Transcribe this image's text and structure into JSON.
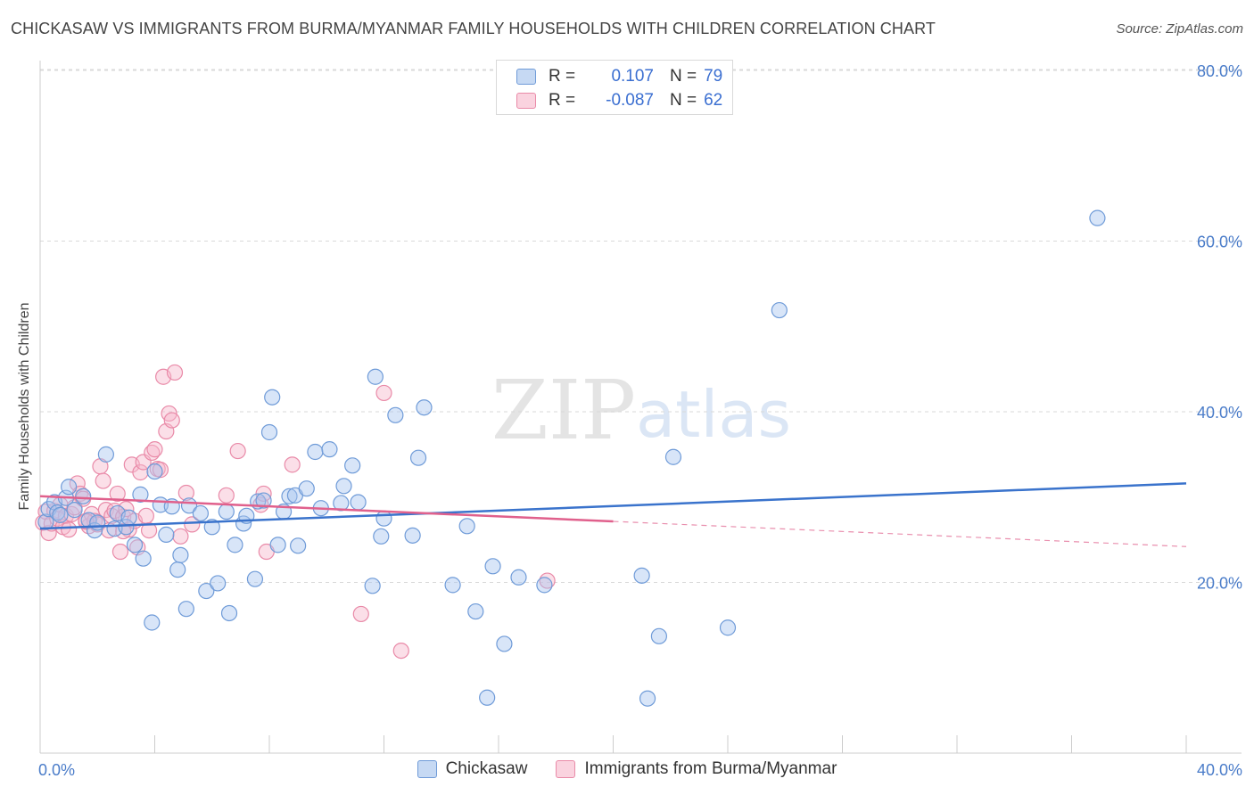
{
  "title": "CHICKASAW VS IMMIGRANTS FROM BURMA/MYANMAR FAMILY HOUSEHOLDS WITH CHILDREN CORRELATION CHART",
  "source": "Source: ZipAtlas.com",
  "watermark": {
    "zip": "ZIP",
    "atlas": "atlas"
  },
  "legend": {
    "r_label": "R =",
    "n_label": "N =",
    "series": [
      {
        "r": "0.107",
        "n": "79"
      },
      {
        "r": "-0.087",
        "n": "62"
      }
    ]
  },
  "bottom_legend": [
    "Chickasaw",
    "Immigrants from Burma/Myanmar"
  ],
  "colors": {
    "blue_fill": "#a9c6ef",
    "blue_stroke": "#6f9bd8",
    "blue_line": "#3a73cc",
    "pink_fill": "#f6b8cb",
    "pink_stroke": "#e98aa8",
    "pink_line": "#e0608c",
    "grid": "#d9d9d9",
    "axis_text": "#4a7cc9"
  },
  "chart_data": {
    "type": "scatter",
    "title": "CHICKASAW VS IMMIGRANTS FROM BURMA/MYANMAR FAMILY HOUSEHOLDS WITH CHILDREN CORRELATION CHART",
    "xlabel": "",
    "ylabel": "Family Households with Children",
    "xlim": [
      0,
      40
    ],
    "ylim": [
      0,
      82
    ],
    "x_tick_labels": [
      "0.0%",
      "40.0%"
    ],
    "y_ticks": [
      20,
      40,
      60,
      80
    ],
    "y_tick_labels": [
      "20.0%",
      "40.0%",
      "60.0%",
      "80.0%"
    ],
    "grid": true,
    "legend_position": "top-center",
    "series": [
      {
        "name": "Chickasaw",
        "r": 0.107,
        "n": 79,
        "trend": {
          "x0": 0,
          "y0": 26.3,
          "x1": 40,
          "y1": 31.6,
          "dashed_from": null
        },
        "points": [
          [
            0.2,
            27.1
          ],
          [
            0.3,
            28.6
          ],
          [
            0.5,
            29.4
          ],
          [
            0.6,
            28.2
          ],
          [
            0.7,
            27.9
          ],
          [
            0.9,
            29.9
          ],
          [
            1.0,
            31.2
          ],
          [
            1.2,
            28.5
          ],
          [
            1.5,
            30.1
          ],
          [
            1.7,
            27.3
          ],
          [
            1.9,
            26.1
          ],
          [
            2.0,
            27.0
          ],
          [
            2.3,
            35.0
          ],
          [
            2.6,
            26.3
          ],
          [
            2.7,
            28.1
          ],
          [
            3.0,
            26.5
          ],
          [
            3.1,
            27.6
          ],
          [
            3.3,
            24.4
          ],
          [
            3.5,
            30.3
          ],
          [
            3.6,
            22.8
          ],
          [
            3.9,
            15.3
          ],
          [
            4.0,
            33.0
          ],
          [
            4.2,
            29.1
          ],
          [
            4.4,
            25.6
          ],
          [
            4.6,
            28.9
          ],
          [
            4.8,
            21.5
          ],
          [
            4.9,
            23.2
          ],
          [
            5.1,
            16.9
          ],
          [
            5.2,
            29.0
          ],
          [
            5.6,
            28.1
          ],
          [
            5.8,
            19.0
          ],
          [
            6.0,
            26.5
          ],
          [
            6.2,
            19.9
          ],
          [
            6.5,
            28.3
          ],
          [
            6.6,
            16.4
          ],
          [
            6.8,
            24.4
          ],
          [
            7.1,
            26.9
          ],
          [
            7.2,
            27.8
          ],
          [
            7.5,
            20.4
          ],
          [
            7.6,
            29.5
          ],
          [
            7.8,
            29.6
          ],
          [
            8.0,
            37.6
          ],
          [
            8.1,
            41.7
          ],
          [
            8.3,
            24.4
          ],
          [
            8.5,
            28.3
          ],
          [
            8.7,
            30.1
          ],
          [
            8.9,
            30.2
          ],
          [
            9.0,
            24.3
          ],
          [
            9.3,
            31.0
          ],
          [
            9.6,
            35.3
          ],
          [
            9.8,
            28.7
          ],
          [
            10.1,
            35.6
          ],
          [
            10.5,
            29.3
          ],
          [
            10.6,
            31.3
          ],
          [
            10.9,
            33.7
          ],
          [
            11.1,
            29.4
          ],
          [
            11.6,
            19.6
          ],
          [
            11.7,
            44.1
          ],
          [
            11.9,
            25.4
          ],
          [
            12.0,
            27.5
          ],
          [
            12.4,
            39.6
          ],
          [
            13.0,
            25.5
          ],
          [
            13.2,
            34.6
          ],
          [
            13.4,
            40.5
          ],
          [
            14.4,
            19.7
          ],
          [
            14.9,
            26.6
          ],
          [
            15.2,
            16.6
          ],
          [
            15.8,
            21.9
          ],
          [
            16.2,
            12.8
          ],
          [
            16.7,
            20.6
          ],
          [
            17.6,
            19.7
          ],
          [
            21.0,
            20.8
          ],
          [
            21.2,
            6.4
          ],
          [
            21.6,
            13.7
          ],
          [
            22.1,
            34.7
          ],
          [
            24.0,
            14.7
          ],
          [
            25.8,
            51.9
          ],
          [
            36.9,
            62.7
          ],
          [
            15.6,
            6.5
          ]
        ]
      },
      {
        "name": "Immigrants from Burma/Myanmar",
        "r": -0.087,
        "n": 62,
        "trend": {
          "x0": 0,
          "y0": 30.1,
          "x1": 40,
          "y1": 24.2,
          "dashed_from": 20
        },
        "points": [
          [
            0.1,
            27.0
          ],
          [
            0.2,
            28.3
          ],
          [
            0.3,
            25.8
          ],
          [
            0.4,
            26.9
          ],
          [
            0.5,
            28.4
          ],
          [
            0.6,
            27.5
          ],
          [
            0.7,
            29.1
          ],
          [
            0.8,
            26.5
          ],
          [
            0.9,
            27.8
          ],
          [
            1.0,
            26.2
          ],
          [
            1.1,
            28.0
          ],
          [
            1.2,
            28.8
          ],
          [
            1.3,
            31.6
          ],
          [
            1.4,
            30.4
          ],
          [
            1.5,
            29.8
          ],
          [
            1.6,
            27.1
          ],
          [
            1.7,
            26.6
          ],
          [
            1.8,
            28.0
          ],
          [
            1.9,
            27.2
          ],
          [
            2.0,
            26.8
          ],
          [
            2.1,
            33.6
          ],
          [
            2.2,
            31.9
          ],
          [
            2.3,
            28.5
          ],
          [
            2.4,
            26.1
          ],
          [
            2.5,
            27.8
          ],
          [
            2.6,
            28.4
          ],
          [
            2.7,
            30.4
          ],
          [
            2.8,
            23.6
          ],
          [
            2.9,
            27.7
          ],
          [
            3.0,
            28.6
          ],
          [
            3.1,
            26.2
          ],
          [
            3.2,
            33.8
          ],
          [
            3.3,
            27.2
          ],
          [
            3.4,
            24.1
          ],
          [
            3.5,
            32.9
          ],
          [
            3.6,
            34.1
          ],
          [
            3.7,
            27.8
          ],
          [
            3.8,
            26.1
          ],
          [
            3.9,
            35.2
          ],
          [
            4.0,
            35.6
          ],
          [
            4.1,
            33.3
          ],
          [
            4.2,
            33.2
          ],
          [
            4.3,
            44.1
          ],
          [
            4.4,
            37.7
          ],
          [
            4.5,
            39.8
          ],
          [
            4.6,
            39.0
          ],
          [
            4.7,
            44.6
          ],
          [
            4.9,
            25.4
          ],
          [
            5.1,
            30.5
          ],
          [
            5.3,
            26.8
          ],
          [
            6.5,
            30.2
          ],
          [
            6.9,
            35.4
          ],
          [
            7.7,
            29.1
          ],
          [
            7.8,
            30.4
          ],
          [
            7.9,
            23.6
          ],
          [
            8.8,
            33.8
          ],
          [
            11.2,
            16.3
          ],
          [
            12.0,
            42.2
          ],
          [
            12.6,
            12.0
          ],
          [
            17.7,
            20.2
          ],
          [
            1.6,
            27.2
          ],
          [
            2.9,
            26.0
          ]
        ]
      }
    ]
  }
}
